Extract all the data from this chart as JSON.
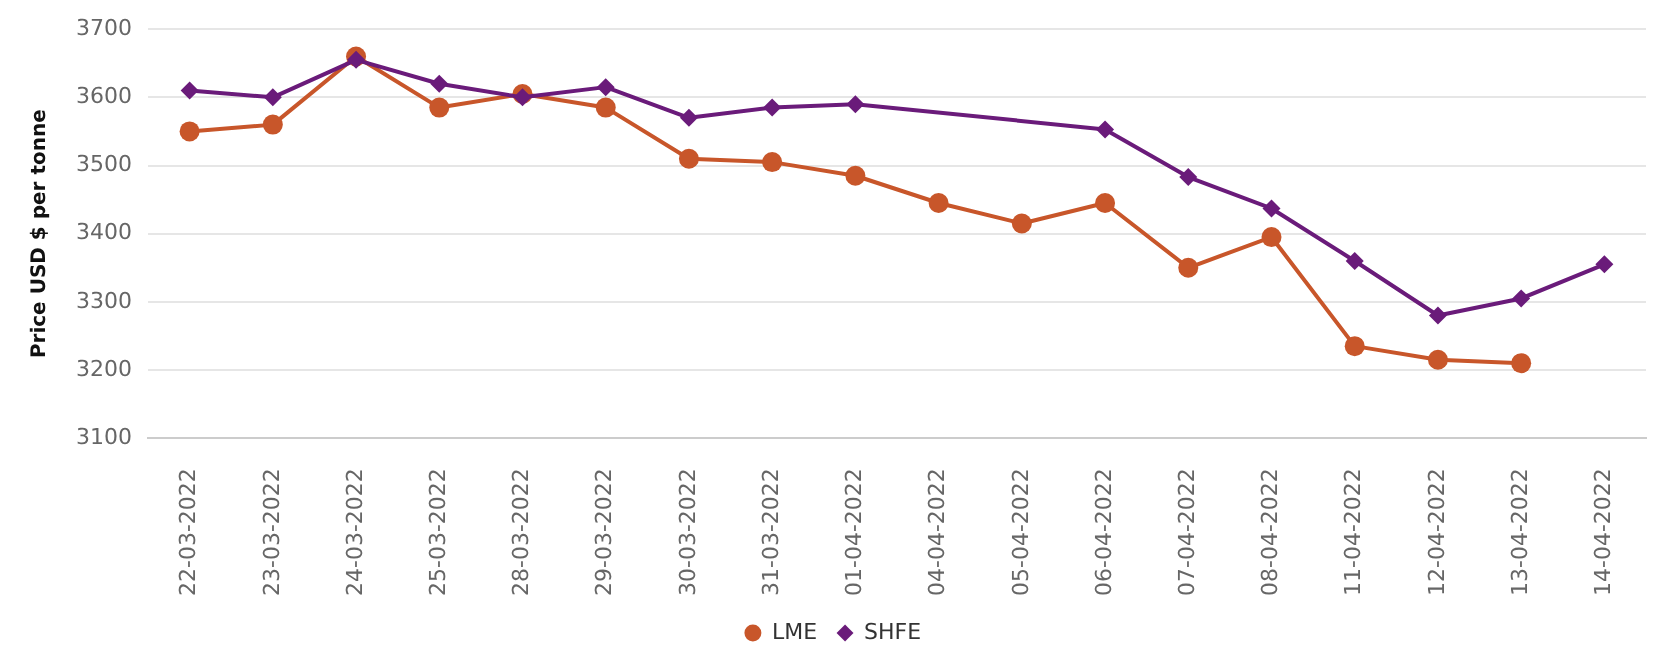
{
  "chart_data": {
    "type": "line",
    "ylabel": "Price USD $ per tonne",
    "categories": [
      "22-03-2022",
      "23-03-2022",
      "24-03-2022",
      "25-03-2022",
      "28-03-2022",
      "29-03-2022",
      "30-03-2022",
      "31-03-2022",
      "01-04-2022",
      "04-04-2022",
      "05-04-2022",
      "06-04-2022",
      "07-04-2022",
      "08-04-2022",
      "11-04-2022",
      "12-04-2022",
      "13-04-2022",
      "14-04-2022"
    ],
    "series": [
      {
        "name": "LME",
        "color": "#c8562a",
        "marker": "circle",
        "values": [
          3550,
          3560,
          3660,
          3585,
          3605,
          3585,
          3510,
          3505,
          3485,
          3445,
          3415,
          3445,
          3350,
          3395,
          3235,
          3215,
          3210,
          null
        ]
      },
      {
        "name": "SHFE",
        "color": "#6a1b7a",
        "marker": "diamond",
        "values": [
          3610,
          3600,
          3655,
          3620,
          3600,
          3615,
          3570,
          3585,
          3590,
          null,
          null,
          3553,
          3483,
          3437,
          3360,
          3280,
          3305,
          3355
        ]
      }
    ],
    "ylim": [
      3100,
      3700
    ],
    "yticks": [
      3100,
      3200,
      3300,
      3400,
      3500,
      3600,
      3700
    ],
    "grid": "y",
    "legend": "bottom",
    "line_style": "solid"
  }
}
